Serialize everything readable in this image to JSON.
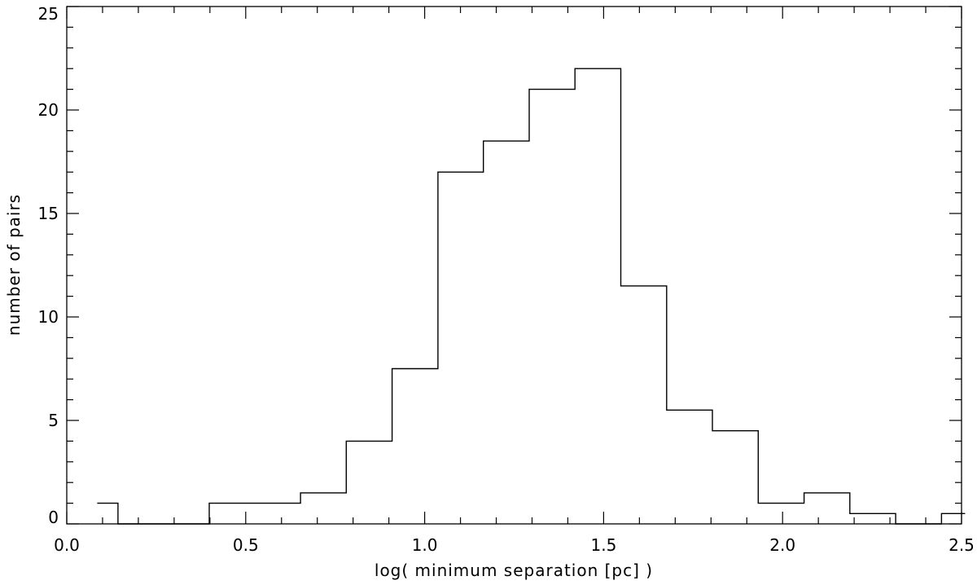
{
  "chart_data": {
    "type": "bar",
    "style": "step-histogram",
    "xlabel": "log( minimum separation [pc] )",
    "ylabel": "number of pairs",
    "xlim": [
      0.0,
      2.5
    ],
    "ylim": [
      0,
      25
    ],
    "xticks": [
      0.0,
      0.5,
      1.0,
      1.5,
      2.0,
      2.5
    ],
    "xtick_labels": [
      "0.0",
      "0.5",
      "1.0",
      "1.5",
      "2.0",
      "2.5"
    ],
    "yticks": [
      0,
      5,
      10,
      15,
      20,
      25
    ],
    "ytick_labels": [
      "0",
      "5",
      "10",
      "15",
      "20",
      "25"
    ],
    "bin_edges": [
      0.085,
      0.143,
      0.398,
      0.526,
      0.653,
      0.781,
      0.909,
      1.037,
      1.164,
      1.292,
      1.42,
      1.548,
      1.676,
      1.804,
      1.932,
      2.06,
      2.188,
      2.316,
      2.444,
      2.51
    ],
    "values": [
      1,
      0,
      1,
      1,
      1.5,
      4,
      7.5,
      17,
      18.5,
      21,
      22,
      11.5,
      5.5,
      4.5,
      1,
      1.5,
      0.5,
      0,
      0.5
    ],
    "grid": false,
    "line_color": "#000000"
  }
}
